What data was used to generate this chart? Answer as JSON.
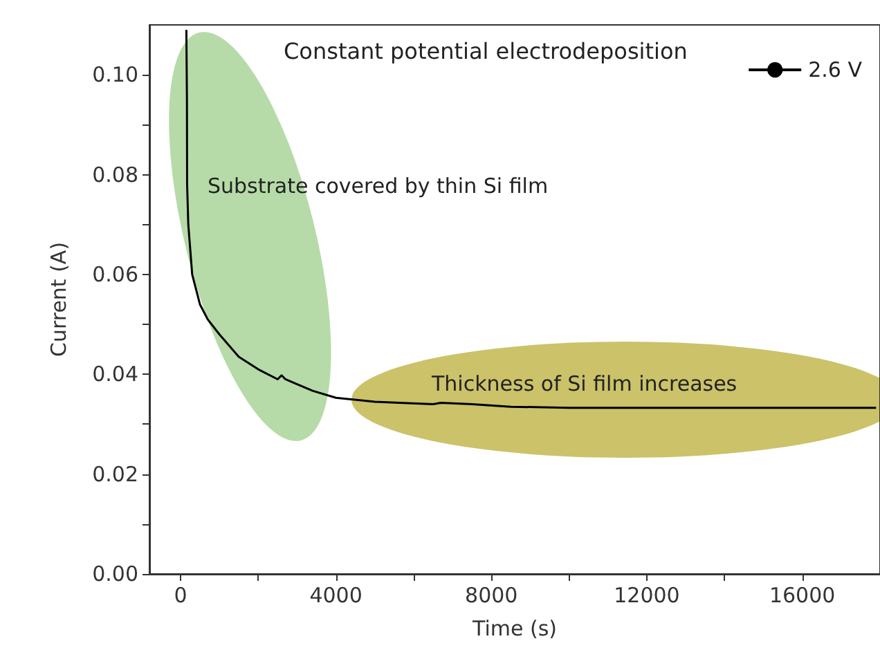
{
  "chart_data": {
    "type": "line",
    "title": "Constant potential electrodeposition",
    "xlabel": "Time (s)",
    "ylabel": "Current (A)",
    "annotations": [
      "Substrate covered by thin Si film",
      "Thickness of Si film increases"
    ],
    "x": [
      150,
      165,
      170,
      200,
      300,
      500,
      700,
      1000,
      1500,
      2000,
      2500,
      2600,
      2700,
      3000,
      3400,
      4000,
      5000,
      6500,
      6700,
      7500,
      8500,
      10000,
      12000,
      14000,
      16000,
      17900
    ],
    "series": [
      {
        "name": "2.6 V",
        "color": "#000000",
        "values": [
          0.109,
          0.095,
          0.078,
          0.07,
          0.06,
          0.054,
          0.051,
          0.048,
          0.0435,
          0.041,
          0.039,
          0.0398,
          0.039,
          0.038,
          0.0367,
          0.0353,
          0.0345,
          0.034,
          0.0343,
          0.034,
          0.0335,
          0.0333,
          0.0333,
          0.0333,
          0.0333,
          0.0333
        ]
      }
    ],
    "xlim": [
      -800,
      18000
    ],
    "xticks": [
      0,
      {
        "value": 2000,
        "label": null
      },
      4000,
      {
        "value": 6000,
        "label": null
      },
      8000,
      {
        "value": 10000,
        "label": null
      },
      12000,
      {
        "value": 14000,
        "label": null
      },
      16000
    ],
    "ylim": [
      0,
      0.11
    ],
    "yticks": [
      {
        "value": 0,
        "label": "0.00"
      },
      {
        "value": 0.01,
        "label": null
      },
      {
        "value": 0.02,
        "label": "0.02"
      },
      {
        "value": 0.03,
        "label": null
      },
      {
        "value": 0.04,
        "label": "0.04"
      },
      {
        "value": 0.05,
        "label": null
      },
      {
        "value": 0.06,
        "label": "0.06"
      },
      {
        "value": 0.07,
        "label": null
      },
      {
        "value": 0.08,
        "label": "0.08"
      },
      {
        "value": 0.09,
        "label": null
      },
      {
        "value": 0.1,
        "label": "0.10"
      }
    ],
    "legend": "top right",
    "grid": false,
    "marker": "none",
    "line_style": "solid"
  }
}
